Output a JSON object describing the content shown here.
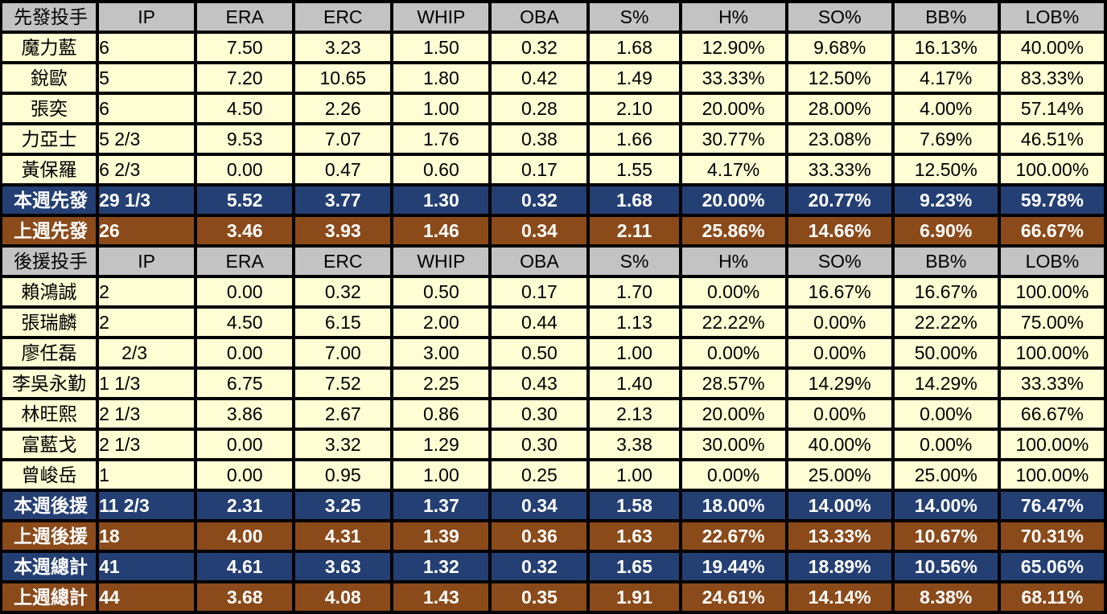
{
  "colors": {
    "header_bg": "#c3c3c3",
    "data_bg": "#fefdd4",
    "current_week_bg": "#243f73",
    "previous_week_bg": "#8b4a1a"
  },
  "columns": [
    "IP",
    "ERA",
    "ERC",
    "WHIP",
    "OBA",
    "S%",
    "H%",
    "SO%",
    "BB%",
    "LOB%"
  ],
  "starters": {
    "header": "先發投手",
    "rows": [
      {
        "name": "魔力藍",
        "values": [
          "6",
          "7.50",
          "3.23",
          "1.50",
          "0.32",
          "1.68",
          "12.90%",
          "9.68%",
          "16.13%",
          "40.00%"
        ]
      },
      {
        "name": "銳歐",
        "values": [
          "5",
          "7.20",
          "10.65",
          "1.80",
          "0.42",
          "1.49",
          "33.33%",
          "12.50%",
          "4.17%",
          "83.33%"
        ]
      },
      {
        "name": "張奕",
        "values": [
          "6",
          "4.50",
          "2.26",
          "1.00",
          "0.28",
          "2.10",
          "20.00%",
          "28.00%",
          "4.00%",
          "57.14%"
        ]
      },
      {
        "name": "力亞士",
        "values": [
          "5 2/3",
          "9.53",
          "7.07",
          "1.76",
          "0.38",
          "1.66",
          "30.77%",
          "23.08%",
          "7.69%",
          "46.51%"
        ]
      },
      {
        "name": "黃保羅",
        "values": [
          "6 2/3",
          "0.00",
          "0.47",
          "0.60",
          "0.17",
          "1.55",
          "4.17%",
          "33.33%",
          "12.50%",
          "100.00%"
        ]
      }
    ],
    "this_week": {
      "name": "本週先發",
      "values": [
        "29 1/3",
        "5.52",
        "3.77",
        "1.30",
        "0.32",
        "1.68",
        "20.00%",
        "20.77%",
        "9.23%",
        "59.78%"
      ]
    },
    "last_week": {
      "name": "上週先發",
      "values": [
        "26",
        "3.46",
        "3.93",
        "1.46",
        "0.34",
        "2.11",
        "25.86%",
        "14.66%",
        "6.90%",
        "66.67%"
      ]
    }
  },
  "relievers": {
    "header": "後援投手",
    "rows": [
      {
        "name": "賴鴻誠",
        "values": [
          "2",
          "0.00",
          "0.32",
          "0.50",
          "0.17",
          "1.70",
          "0.00%",
          "16.67%",
          "16.67%",
          "100.00%"
        ]
      },
      {
        "name": "張瑞麟",
        "values": [
          "2",
          "4.50",
          "6.15",
          "2.00",
          "0.44",
          "1.13",
          "22.22%",
          "0.00%",
          "22.22%",
          "75.00%"
        ]
      },
      {
        "name": "廖任磊",
        "values": [
          "2/3",
          "0.00",
          "7.00",
          "3.00",
          "0.50",
          "1.00",
          "0.00%",
          "0.00%",
          "50.00%",
          "100.00%"
        ]
      },
      {
        "name": "李吳永勤",
        "values": [
          "1 1/3",
          "6.75",
          "7.52",
          "2.25",
          "0.43",
          "1.40",
          "28.57%",
          "14.29%",
          "14.29%",
          "33.33%"
        ]
      },
      {
        "name": "林旺熙",
        "values": [
          "2 1/3",
          "3.86",
          "2.67",
          "0.86",
          "0.30",
          "2.13",
          "20.00%",
          "0.00%",
          "0.00%",
          "66.67%"
        ]
      },
      {
        "name": "富藍戈",
        "values": [
          "2 1/3",
          "0.00",
          "3.32",
          "1.29",
          "0.30",
          "3.38",
          "30.00%",
          "40.00%",
          "0.00%",
          "100.00%"
        ]
      },
      {
        "name": "曾峻岳",
        "values": [
          "1",
          "0.00",
          "0.95",
          "1.00",
          "0.25",
          "1.00",
          "0.00%",
          "25.00%",
          "25.00%",
          "100.00%"
        ]
      }
    ],
    "this_week": {
      "name": "本週後援",
      "values": [
        "11 2/3",
        "2.31",
        "3.25",
        "1.37",
        "0.34",
        "1.58",
        "18.00%",
        "14.00%",
        "14.00%",
        "76.47%"
      ]
    },
    "last_week": {
      "name": "上週後援",
      "values": [
        "18",
        "4.00",
        "4.31",
        "1.39",
        "0.36",
        "1.63",
        "22.67%",
        "13.33%",
        "10.67%",
        "70.31%"
      ]
    }
  },
  "totals": {
    "this_week": {
      "name": "本週總計",
      "values": [
        "41",
        "4.61",
        "3.63",
        "1.32",
        "0.32",
        "1.65",
        "19.44%",
        "18.89%",
        "10.56%",
        "65.06%"
      ]
    },
    "last_week": {
      "name": "上週總計",
      "values": [
        "44",
        "3.68",
        "4.08",
        "1.43",
        "0.35",
        "1.91",
        "24.61%",
        "14.14%",
        "8.38%",
        "68.11%"
      ]
    }
  }
}
